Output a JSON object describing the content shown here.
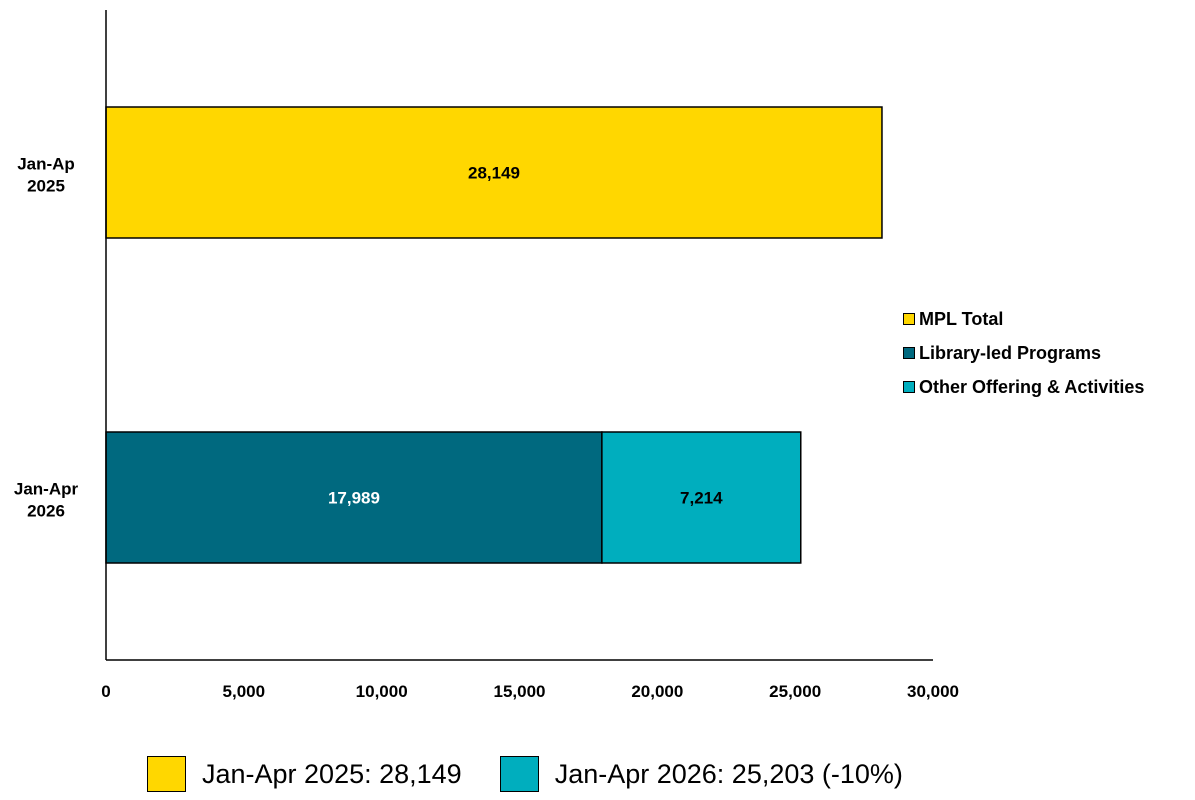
{
  "chart_data": {
    "type": "bar",
    "orientation": "horizontal",
    "stacked": true,
    "categories": [
      "Jan-Ap\n2025",
      "Jan-Apr\n2026"
    ],
    "series": [
      {
        "name": "MPL Total",
        "color": "#FFD700",
        "values": [
          28149,
          null
        ],
        "labels": [
          "28,149",
          ""
        ]
      },
      {
        "name": "Library-led Programs",
        "color": "#00697F",
        "values": [
          null,
          17989
        ],
        "labels": [
          "",
          "17,989"
        ]
      },
      {
        "name": "Other Offering & Activities",
        "color": "#00AEBE",
        "values": [
          null,
          7214
        ],
        "labels": [
          "",
          "7,214"
        ]
      }
    ],
    "xlim": [
      0,
      30000
    ],
    "xticks": [
      0,
      5000,
      10000,
      15000,
      20000,
      25000,
      30000
    ],
    "xtick_labels": [
      "0",
      "5,000",
      "10,000",
      "15,000",
      "20,000",
      "25,000",
      "30,000"
    ],
    "grid": false,
    "legend_position": "right"
  },
  "footer": {
    "items": [
      {
        "label": "Jan-Apr 2025: 28,149",
        "color": "#FFD700"
      },
      {
        "label": "Jan-Apr 2026: 25,203 (-10%)",
        "color": "#00AEBE"
      }
    ]
  }
}
